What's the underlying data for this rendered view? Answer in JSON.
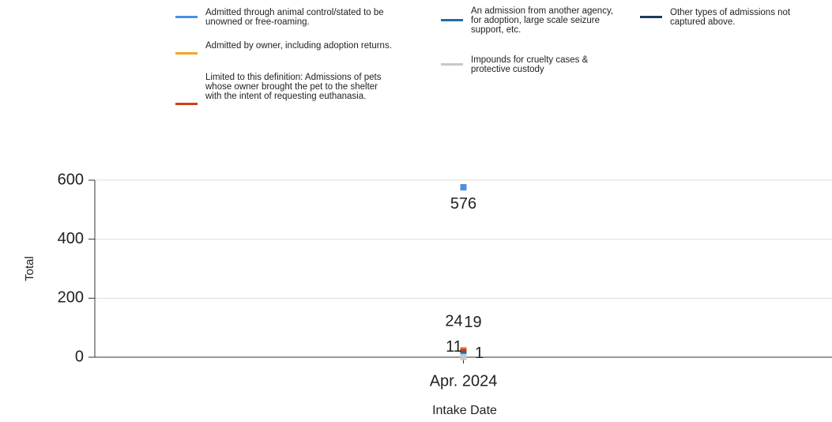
{
  "chart_data": {
    "type": "line",
    "x_label": "Intake Date",
    "y_label": "Total",
    "categories": [
      "Apr. 2024"
    ],
    "series": [
      {
        "name": "Admitted through animal control/stated to be unowned or free-roaming.",
        "color": "#4a90e2",
        "values": [
          576
        ]
      },
      {
        "name": "Admitted by owner, including adoption returns.",
        "color": "#f5a623",
        "values": [
          24
        ]
      },
      {
        "name": "Limited to this definition: Admissions of pets whose owner brought the pet to the shelter with the intent of requesting euthanasia.",
        "color": "#d0401b",
        "values": [
          19
        ]
      },
      {
        "name": "An admission from another agency, for adoption, large scale seizure support, etc.",
        "color": "#1f6f9f",
        "values": [
          11
        ]
      },
      {
        "name": "Impounds for cruelty cases & protective custody",
        "color": "#c8c8c8",
        "values": [
          1
        ]
      },
      {
        "name": "Other types of admissions not captured above.",
        "color": "#1f3a5f",
        "values": [
          null
        ]
      }
    ],
    "ylim": [
      0,
      600
    ],
    "yticks": [
      0,
      200,
      400,
      600
    ],
    "grid": true
  }
}
